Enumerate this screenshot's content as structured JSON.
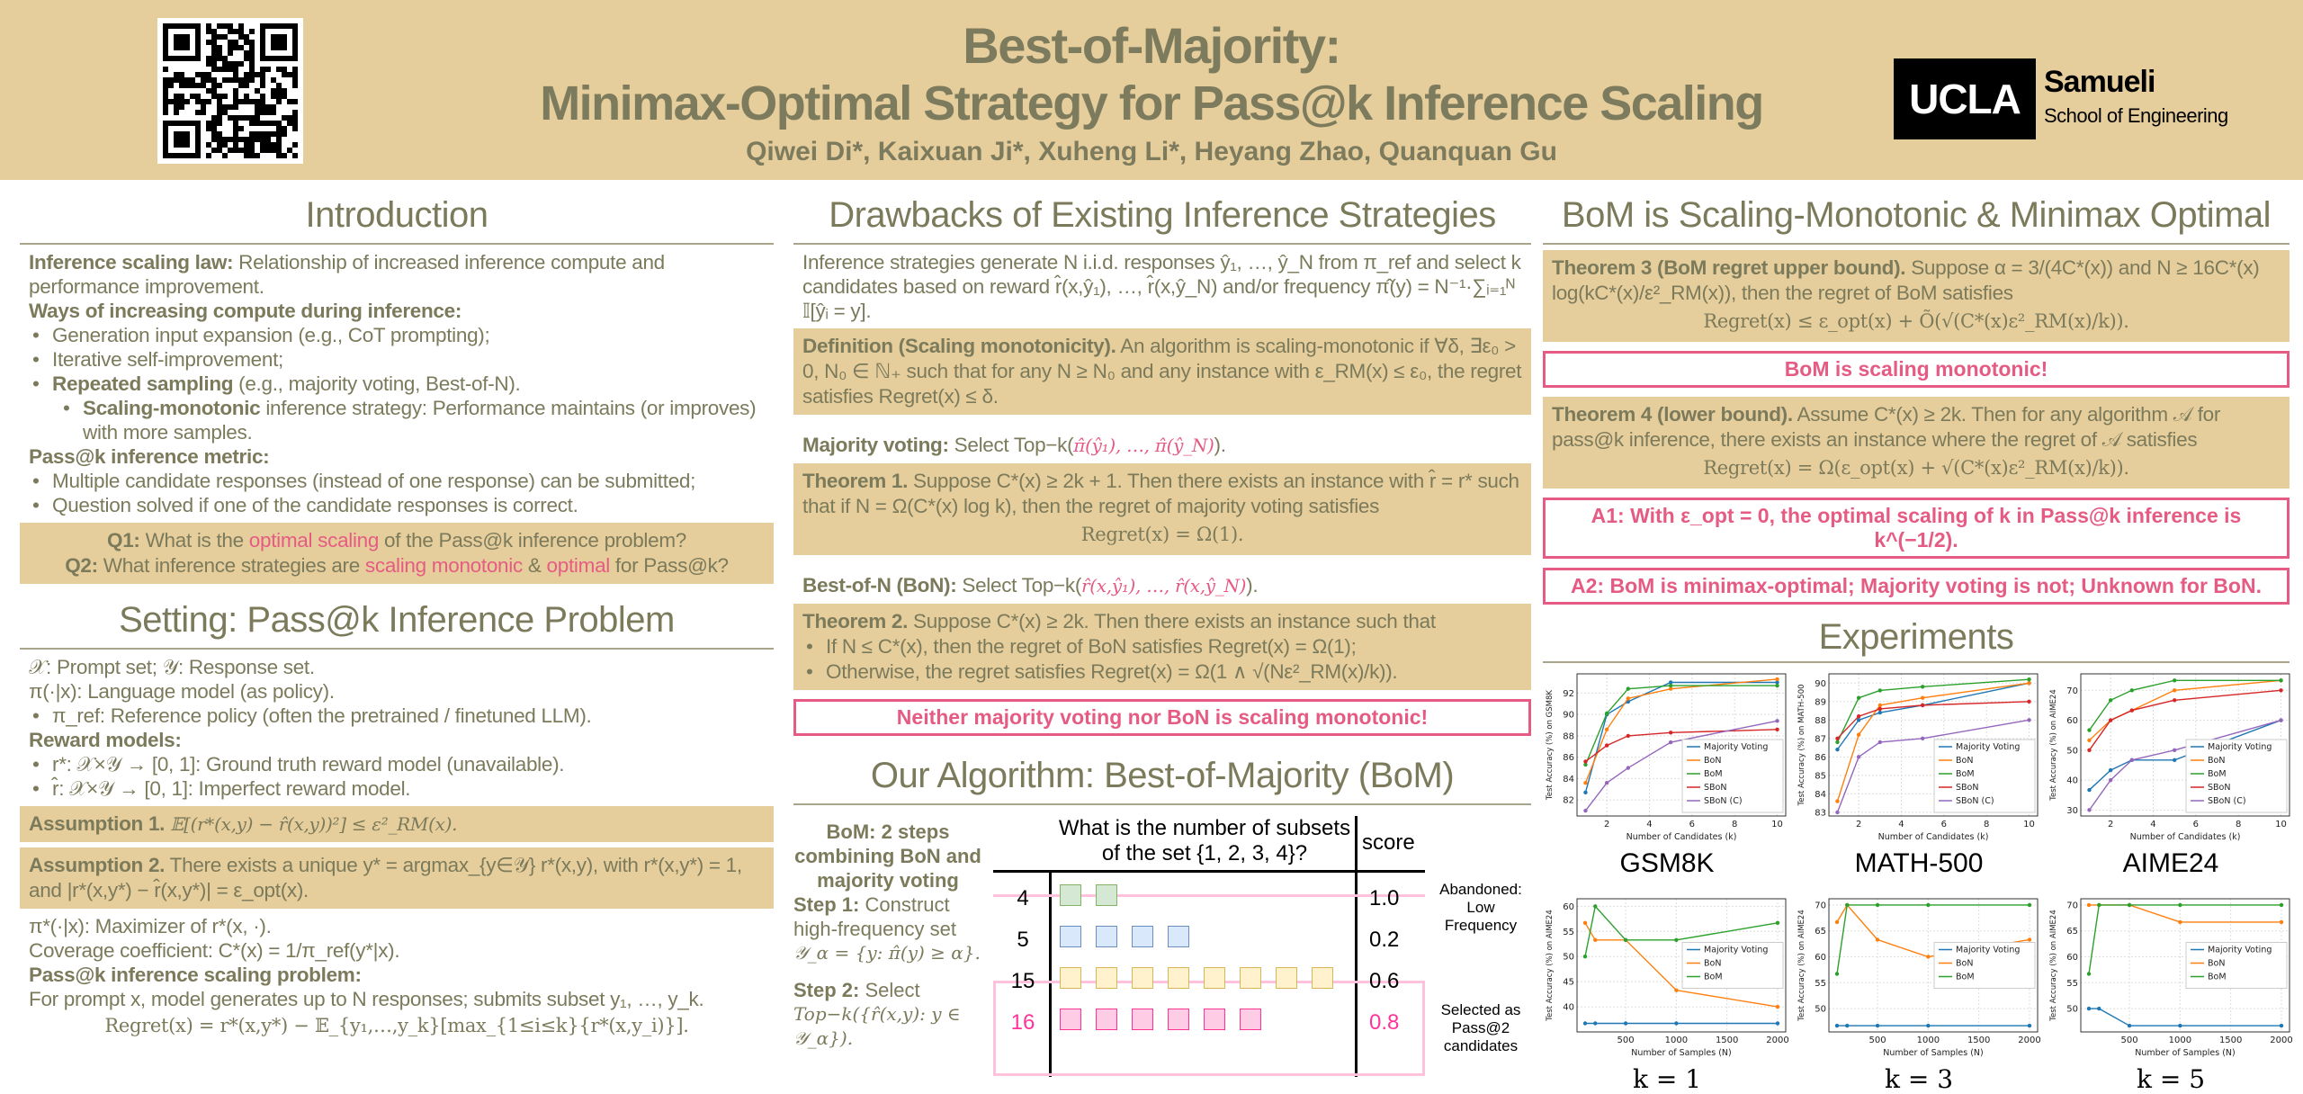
{
  "header": {
    "title_line1": "Best-of-Majority:",
    "title_line2": "Minimax-Optimal Strategy for Pass@k Inference Scaling",
    "authors": "Qiwei Di*, Kaixuan Ji*, Xuheng Li*, Heyang Zhao, Quanquan Gu",
    "logo_ucla": "UCLA",
    "logo_samueli": "Samueli",
    "logo_school": "School of Engineering"
  },
  "intro": {
    "title": "Introduction",
    "law_label": "Inference scaling law:",
    "law_text": " Relationship of  increased inference compute and performance improvement.",
    "ways_label": "Ways of increasing compute during inference:",
    "way1": "Generation input expansion (e.g., CoT prompting);",
    "way2": "Iterative self-improvement;",
    "way3_bold": "Repeated sampling",
    "way3_text": " (e.g., majority voting, Best-of-N).",
    "sub_bold": "Scaling-monotonic",
    "sub_text": " inference strategy: Performance maintains (or improves) with more samples.",
    "metric_label": "Pass@k inference metric:",
    "metric1": "Multiple candidate responses (instead of one response) can be submitted;",
    "metric2": "Question solved if one of the candidate responses is correct.",
    "q1_label": "Q1:",
    "q1_a": " What is the ",
    "q1_pink": "optimal scaling",
    "q1_b": " of the Pass@k inference problem?",
    "q2_label": "Q2:",
    "q2_a": " What inference strategies are ",
    "q2_pink1": "scaling monotonic",
    "q2_b": " & ",
    "q2_pink2": "optimal",
    "q2_c": " for Pass@k?"
  },
  "setting": {
    "title": "Setting: Pass@k Inference Problem",
    "l1": "𝒳: Prompt set; 𝒴: Response set.",
    "l2": "π(·|x): Language model (as policy).",
    "l3": "π_ref: Reference policy (often the pretrained / finetuned LLM).",
    "reward_label": "Reward models:",
    "r1": "r*: 𝒳×𝒴 → [0, 1]: Ground truth reward model (unavailable).",
    "r2": "r̂: 𝒳×𝒴 → [0, 1]: Imperfect reward model.",
    "a1_label": "Assumption 1.",
    "a1_text": " 𝔼[(r*(x,y) − r̂(x,y))²] ≤ ε²_RM(x).",
    "a2_label": "Assumption 2.",
    "a2_text": " There exists a unique y* = argmax_{y∈𝒴} r*(x,y), with r*(x,y*) = 1, and |r*(x,y*) − r̂(x,y*)| = ε_opt(x).",
    "l4": "π*(·|x): Maximizer of r*(x, ·).",
    "l5": "Coverage coefficient: C*(x) = 1/π_ref(y*|x).",
    "problem_label": "Pass@k inference scaling problem:",
    "problem_text": "For prompt x, model generates up to N responses; submits subset y₁, …, y_k.",
    "regret": "Regret(x) = r*(x,y*) − 𝔼_{y₁,…,y_k}[max_{1≤i≤k}{r*(x,y_i)}]."
  },
  "drawbacks": {
    "title": "Drawbacks of Existing Inference Strategies",
    "intro": "Inference strategies generate N i.i.d. responses ŷ₁, …, ŷ_N from π_ref and select k candidates based on reward r̂(x,ŷ₁), …, r̂(x,ŷ_N) and/or frequency π̂(y) = N⁻¹·∑ᵢ₌₁ᴺ 𝕀[ŷᵢ = y].",
    "def_label": "Definition (Scaling monotonicity).",
    "def_text": " An algorithm is scaling-monotonic if ∀δ, ∃ε₀ > 0, N₀ ∈ ℕ₊ such that for any N ≥ N₀ and any instance with ε_RM(x) ≤ ε₀, the regret satisfies Regret(x) ≤ δ.",
    "mv_label": "Majority voting:",
    "mv_a": " Select Top−k(",
    "mv_pink": "π̂(ŷ₁), …, π̂(ŷ_N)",
    "mv_b": ").",
    "t1_label": "Theorem 1.",
    "t1_text": " Suppose C*(x) ≥ 2k + 1. Then there exists an instance with r̂ = r* such that if N = Ω(C*(x) log k), then the regret of majority voting satisfies",
    "t1_eq": "Regret(x) = Ω(1).",
    "bon_label": "Best-of-N (BoN):",
    "bon_a": " Select Top−k(",
    "bon_pink": "r̂(x,ŷ₁), …, r̂(x,ŷ_N)",
    "bon_b": ").",
    "t2_label": "Theorem 2.",
    "t2_text": " Suppose C*(x) ≥ 2k. Then there exists an instance such that",
    "t2_b1": "If N ≤ C*(x), then the regret of BoN satisfies Regret(x) = Ω(1);",
    "t2_b2": "Otherwise, the regret satisfies Regret(x) = Ω(1 ∧ √(Nε²_RM(x)/k)).",
    "conclusion": "Neither majority voting nor BoN is scaling monotonic!"
  },
  "algorithm": {
    "title": "Our Algorithm: Best-of-Majority (BoM)",
    "summary": "BoM: 2 steps combining BoN and majority voting",
    "step1_label": "Step 1:",
    "step1_text": " Construct high-frequency set",
    "step1_eq": "𝒴_α = {y: π̂(y) ≥ α}.",
    "step2_label": "Step 2:",
    "step2_text": " Select",
    "step2_eq": "Top−k({r̂(x,y): y ∈ 𝒴_α}).",
    "question": "What is the number of subsets of the set {1, 2, 3, 4}?",
    "score_header": "score",
    "rows": [
      {
        "answer": "4",
        "count": 2,
        "score": "1.0",
        "color": "#d5e8d4",
        "border": "#82b366"
      },
      {
        "answer": "5",
        "count": 4,
        "score": "0.2",
        "color": "#dae8fc",
        "border": "#6c8ebf"
      },
      {
        "answer": "15",
        "count": 8,
        "score": "0.6",
        "color": "#fff2cc",
        "border": "#d6b656"
      },
      {
        "answer": "16",
        "count": 6,
        "score": "0.8",
        "color": "#ffcce6",
        "border": "#ff3399"
      }
    ],
    "abandoned": "Abandoned: Low Frequency",
    "selected": "Selected as Pass@2 candidates"
  },
  "results": {
    "title": "BoM is Scaling-Monotonic & Minimax Optimal",
    "t3_label": "Theorem 3 (BoM regret upper bound).",
    "t3_text": " Suppose α = 3/(4C*(x)) and N ≥ 16C*(x) log(kC*(x)/ε²_RM(x)), then the regret of BoM satisfies",
    "t3_eq": "Regret(x) ≤ ε_opt(x) + Õ(√(C*(x)ε²_RM(x)/k)).",
    "claim": "BoM is scaling monotonic!",
    "t4_label": "Theorem 4 (lower bound).",
    "t4_text": " Assume C*(x) ≥ 2k. Then for any algorithm 𝒜 for pass@k inference, there exists an instance where the regret of 𝒜 satisfies",
    "t4_eq": "Regret(x) = Ω(ε_opt(x) + √(C*(x)ε²_RM(x)/k)).",
    "a1": "A1: With ε_opt = 0, the optimal scaling of k in Pass@k inference is k^(−1/2).",
    "a2": "A2: BoM is minimax-optimal; Majority voting is not; Unknown for BoN."
  },
  "experiments": {
    "title": "Experiments"
  },
  "colors": {
    "header_bg": "#e6ce9c",
    "text": "#7b7a5b",
    "accent_pink": "#e55b84"
  },
  "chart_data": [
    {
      "type": "line",
      "title": "GSM8K",
      "xlabel": "Number of Candidates (k)",
      "ylabel": "Test Accuracy (%) on GSM8K",
      "x": [
        1,
        2,
        3,
        5,
        10
      ],
      "xlim": [
        0.6,
        10.4
      ],
      "ylim": [
        80.5,
        93.8
      ],
      "xticks": [
        2,
        4,
        6,
        8,
        10
      ],
      "yticks": [
        82,
        84,
        86,
        88,
        90,
        92
      ],
      "grid": true,
      "legend": "lower-right",
      "series": [
        {
          "name": "Majority Voting",
          "color": "#1f77b4",
          "values": [
            82.7,
            90.0,
            91.2,
            93.0,
            93.0
          ]
        },
        {
          "name": "BoN",
          "color": "#ff7f0e",
          "values": [
            83.6,
            88.6,
            91.5,
            92.4,
            93.3
          ]
        },
        {
          "name": "BoM",
          "color": "#2ca02c",
          "values": [
            85.3,
            90.1,
            92.4,
            92.7,
            92.7
          ]
        },
        {
          "name": "SBoN",
          "color": "#d62728",
          "values": [
            85.6,
            87.1,
            88.0,
            88.3,
            88.6
          ]
        },
        {
          "name": "SBoN (C)",
          "color": "#9467bd",
          "values": [
            81.0,
            83.6,
            85.0,
            87.4,
            89.4
          ]
        }
      ]
    },
    {
      "type": "line",
      "title": "MATH-500",
      "xlabel": "Number of Candidates (k)",
      "ylabel": "Test Accuracy (%) on MATH-500",
      "x": [
        1,
        2,
        3,
        5,
        10
      ],
      "xlim": [
        0.6,
        10.4
      ],
      "ylim": [
        82.8,
        90.5
      ],
      "xticks": [
        2,
        4,
        6,
        8,
        10
      ],
      "yticks": [
        83,
        84,
        85,
        86,
        87,
        88,
        89,
        90
      ],
      "grid": true,
      "legend": "lower-right",
      "series": [
        {
          "name": "Majority Voting",
          "color": "#1f77b4",
          "values": [
            86.4,
            88.0,
            88.4,
            88.8,
            90.0
          ]
        },
        {
          "name": "BoN",
          "color": "#ff7f0e",
          "values": [
            83.6,
            87.2,
            88.8,
            89.2,
            90.0
          ]
        },
        {
          "name": "BoM",
          "color": "#2ca02c",
          "values": [
            86.8,
            89.2,
            89.6,
            89.8,
            90.2
          ]
        },
        {
          "name": "SBoN",
          "color": "#d62728",
          "values": [
            87.0,
            88.2,
            88.6,
            88.8,
            89.0
          ]
        },
        {
          "name": "SBoN (C)",
          "color": "#9467bd",
          "values": [
            83.0,
            86.0,
            86.8,
            87.0,
            88.0
          ]
        }
      ]
    },
    {
      "type": "line",
      "title": "AIME24",
      "xlabel": "Number of Candidates (k)",
      "ylabel": "Test Accuracy (%) on AIME24",
      "x": [
        1,
        2,
        3,
        5,
        10
      ],
      "xlim": [
        0.6,
        10.4
      ],
      "ylim": [
        28,
        75.5
      ],
      "xticks": [
        2,
        4,
        6,
        8,
        10
      ],
      "yticks": [
        30,
        40,
        50,
        60,
        70
      ],
      "grid": true,
      "legend": "lower-right",
      "series": [
        {
          "name": "Majority Voting",
          "color": "#1f77b4",
          "values": [
            36.7,
            43.3,
            46.7,
            46.7,
            60.0
          ]
        },
        {
          "name": "BoN",
          "color": "#ff7f0e",
          "values": [
            53.3,
            60.0,
            63.3,
            70.0,
            73.3
          ]
        },
        {
          "name": "BoM",
          "color": "#2ca02c",
          "values": [
            56.7,
            66.7,
            70.0,
            73.3,
            73.3
          ]
        },
        {
          "name": "SBoN",
          "color": "#d62728",
          "values": [
            50.0,
            60.0,
            63.3,
            66.7,
            70.0
          ]
        },
        {
          "name": "SBoN (C)",
          "color": "#9467bd",
          "values": [
            30.0,
            40.0,
            46.7,
            50.0,
            60.0
          ]
        }
      ]
    },
    {
      "type": "line",
      "title": "k = 1",
      "xlabel": "Number of Samples (N)",
      "ylabel": "Test Accuracy (%) on AIME24",
      "x": [
        100,
        200,
        500,
        1000,
        2000
      ],
      "xlim": [
        20,
        2080
      ],
      "ylim": [
        35,
        61.5
      ],
      "xticks": [
        500,
        1000,
        1500,
        2000
      ],
      "yticks": [
        40,
        45,
        50,
        55,
        60
      ],
      "grid": true,
      "legend": "center-right",
      "series": [
        {
          "name": "Majority Voting",
          "color": "#1f77b4",
          "values": [
            36.7,
            36.7,
            36.7,
            36.7,
            36.7
          ]
        },
        {
          "name": "BoN",
          "color": "#ff7f0e",
          "values": [
            56.7,
            53.3,
            53.3,
            43.3,
            40.0
          ]
        },
        {
          "name": "BoM",
          "color": "#2ca02c",
          "values": [
            50.0,
            60.0,
            53.3,
            53.3,
            56.7
          ]
        }
      ]
    },
    {
      "type": "line",
      "title": "k = 3",
      "xlabel": "Number of Samples (N)",
      "ylabel": "Test Accuracy (%) on AIME24",
      "x": [
        100,
        200,
        500,
        1000,
        2000
      ],
      "xlim": [
        20,
        2080
      ],
      "ylim": [
        45.5,
        71.2
      ],
      "xticks": [
        500,
        1000,
        1500,
        2000
      ],
      "yticks": [
        50,
        55,
        60,
        65,
        70
      ],
      "grid": true,
      "legend": "center-right",
      "series": [
        {
          "name": "Majority Voting",
          "color": "#1f77b4",
          "values": [
            46.7,
            46.7,
            46.7,
            46.7,
            46.7
          ]
        },
        {
          "name": "BoN",
          "color": "#ff7f0e",
          "values": [
            66.7,
            70.0,
            63.3,
            60.0,
            63.3
          ]
        },
        {
          "name": "BoM",
          "color": "#2ca02c",
          "values": [
            56.7,
            70.0,
            70.0,
            70.0,
            70.0
          ]
        }
      ]
    },
    {
      "type": "line",
      "title": "k = 5",
      "xlabel": "Number of Samples (N)",
      "ylabel": "Test Accuracy (%) on AIME24",
      "x": [
        100,
        200,
        500,
        1000,
        2000
      ],
      "xlim": [
        20,
        2080
      ],
      "ylim": [
        45.5,
        71.2
      ],
      "xticks": [
        500,
        1000,
        1500,
        2000
      ],
      "yticks": [
        50,
        55,
        60,
        65,
        70
      ],
      "grid": true,
      "legend": "center-right",
      "series": [
        {
          "name": "Majority Voting",
          "color": "#1f77b4",
          "values": [
            50.0,
            50.0,
            46.7,
            46.7,
            46.7
          ]
        },
        {
          "name": "BoN",
          "color": "#ff7f0e",
          "values": [
            70.0,
            70.0,
            70.0,
            66.7,
            66.7
          ]
        },
        {
          "name": "BoM",
          "color": "#2ca02c",
          "values": [
            56.7,
            70.0,
            70.0,
            70.0,
            70.0
          ]
        }
      ]
    }
  ]
}
